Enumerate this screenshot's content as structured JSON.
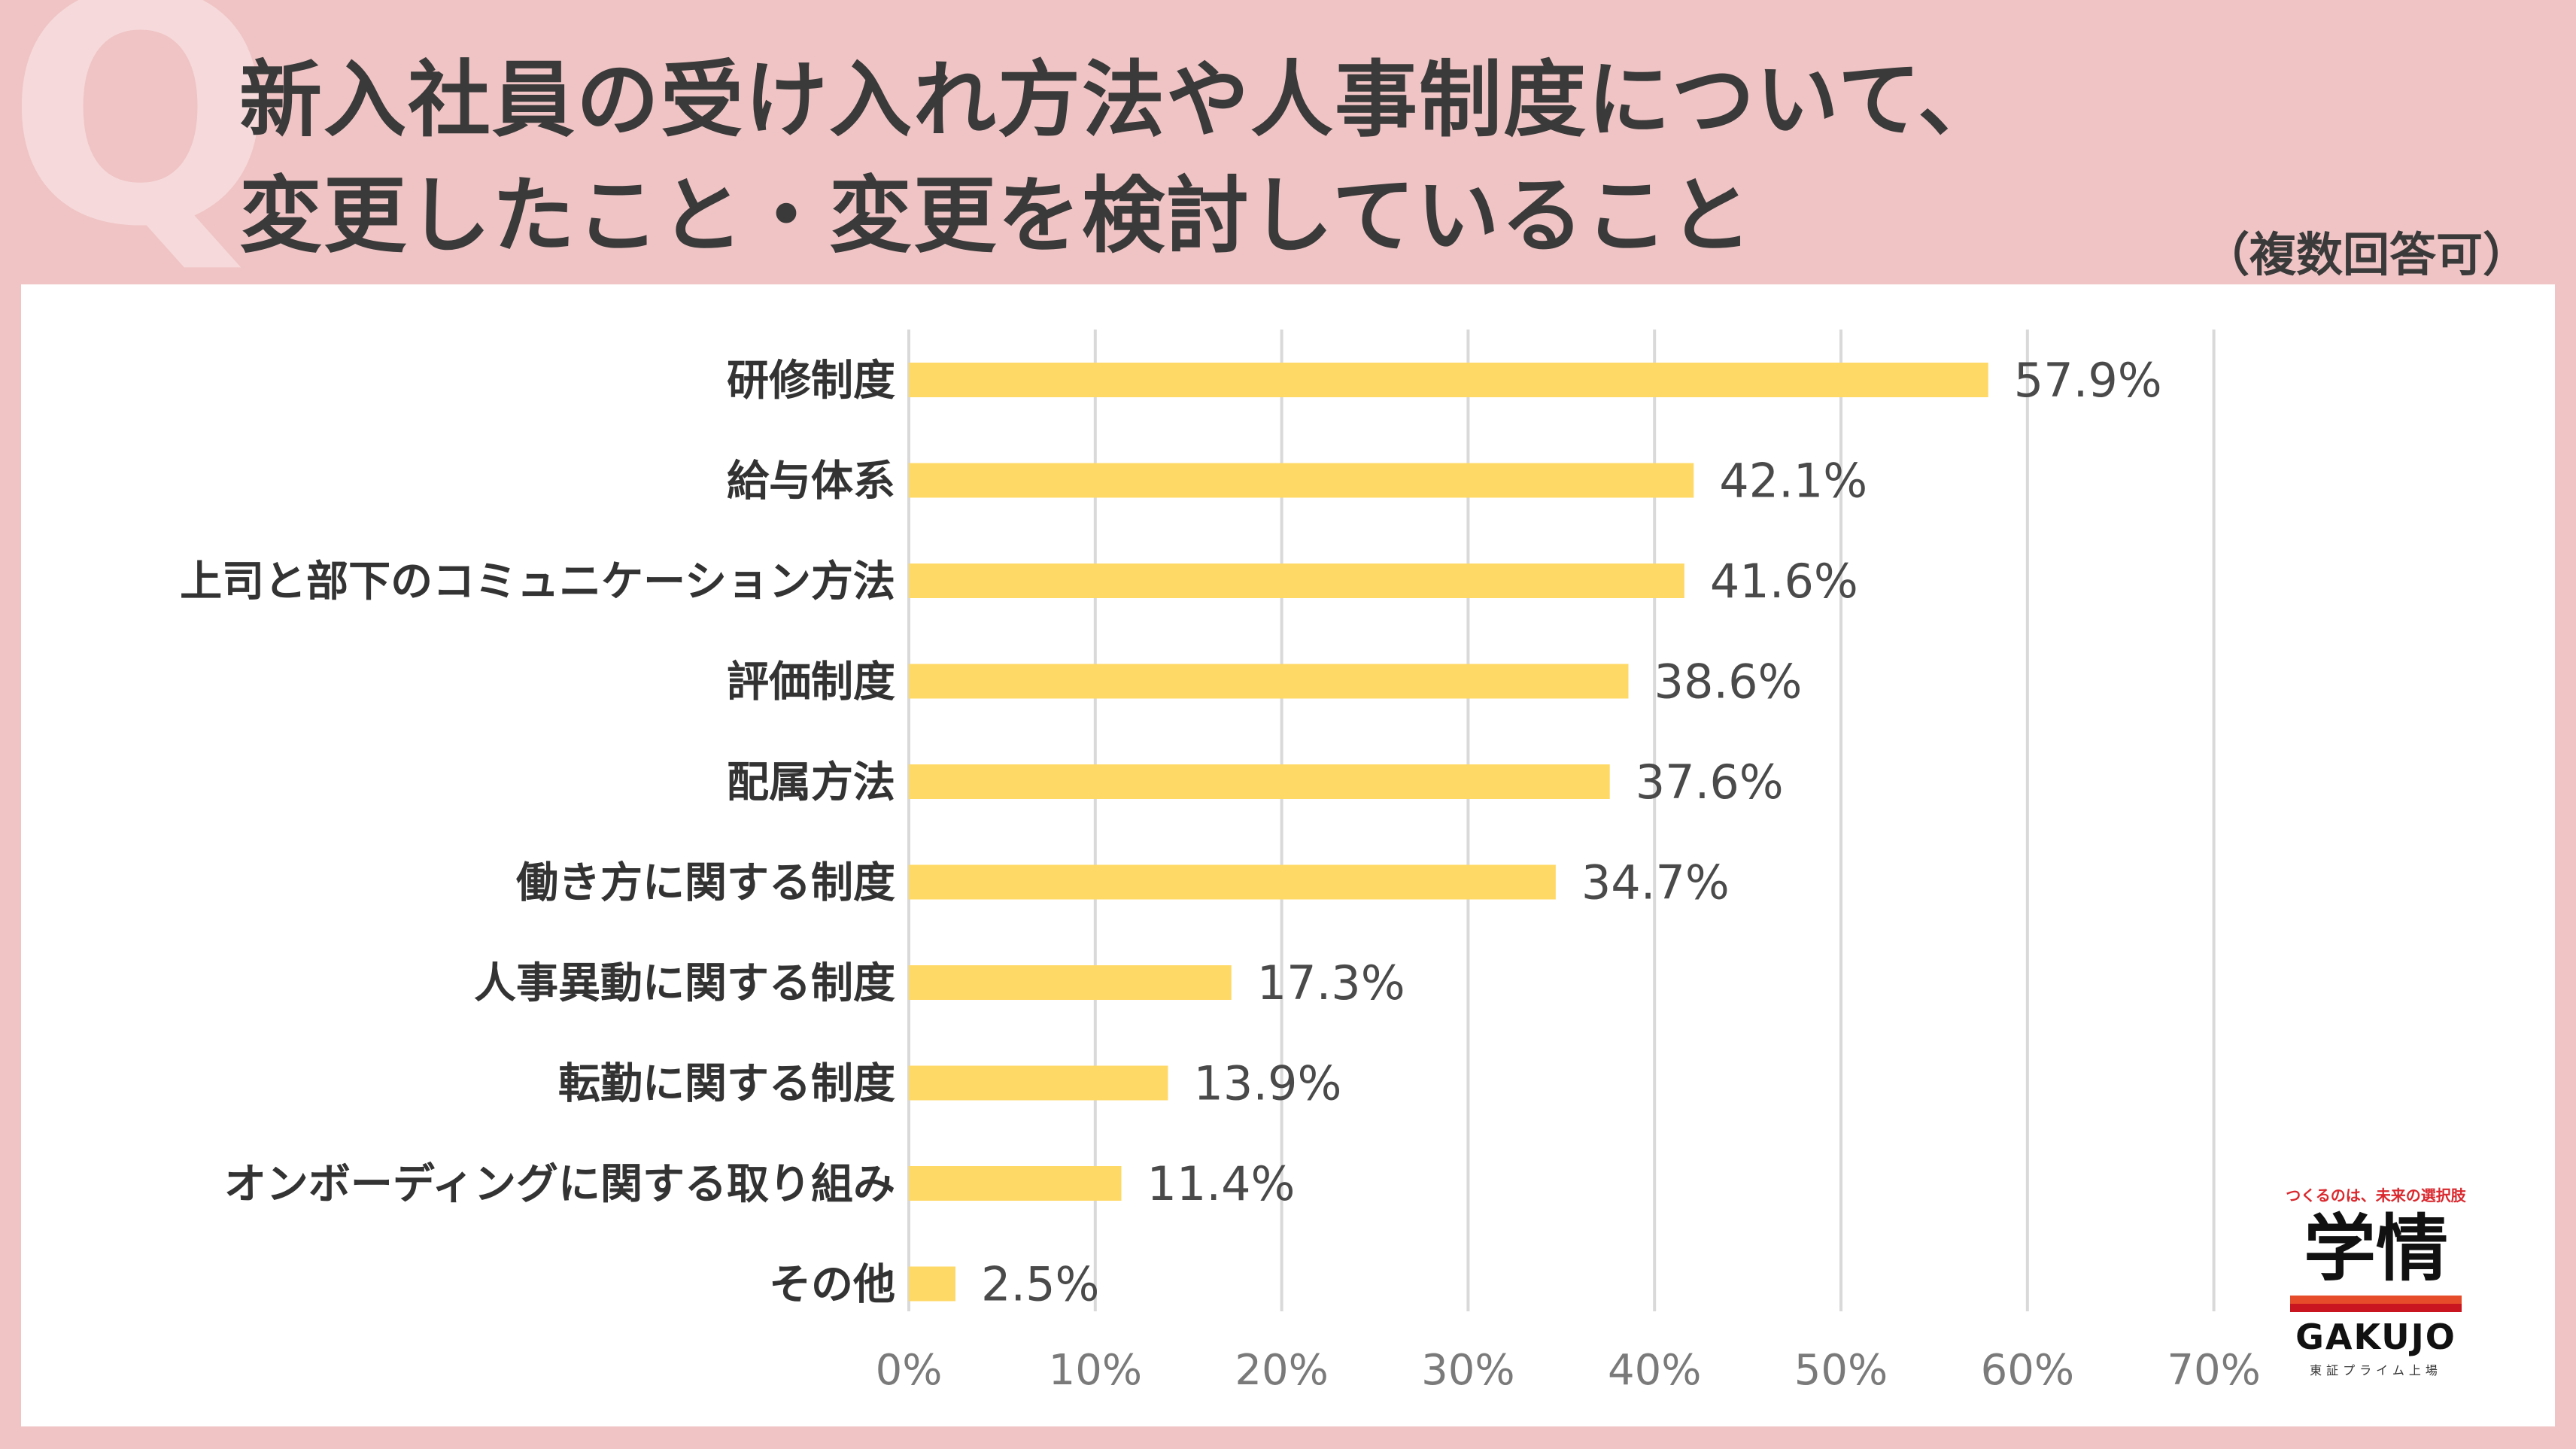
{
  "header": {
    "title_line1": "新入社員の受け入れ方法や人事制度について、",
    "title_line2": "変更したこと・変更を検討していること",
    "note": "（複数回答可）"
  },
  "logo": {
    "tagline": "つくるのは、未来の選択肢",
    "mark": "学情",
    "name": "GAKUJO",
    "sub": "東証プライム上場"
  },
  "colors": {
    "bar": "#ffd966",
    "grid": "#d9d9d9",
    "background": "#f0c4c5"
  },
  "chart_data": {
    "type": "bar",
    "orientation": "horizontal",
    "categories": [
      "研修制度",
      "給与体系",
      "上司と部下のコミュニケーション方法",
      "評価制度",
      "配属方法",
      "働き方に関する制度",
      "人事異動に関する制度",
      "転勤に関する制度",
      "オンボーディングに関する取り組み",
      "その他"
    ],
    "values": [
      57.9,
      42.1,
      41.6,
      38.6,
      37.6,
      34.7,
      17.3,
      13.9,
      11.4,
      2.5
    ],
    "value_labels": [
      "57.9%",
      "42.1%",
      "41.6%",
      "38.6%",
      "37.6%",
      "34.7%",
      "17.3%",
      "13.9%",
      "11.4%",
      "2.5%"
    ],
    "xticks": [
      "0%",
      "10%",
      "20%",
      "30%",
      "40%",
      "50%",
      "60%",
      "70%"
    ],
    "xlim": [
      0,
      70
    ],
    "grid": true
  }
}
